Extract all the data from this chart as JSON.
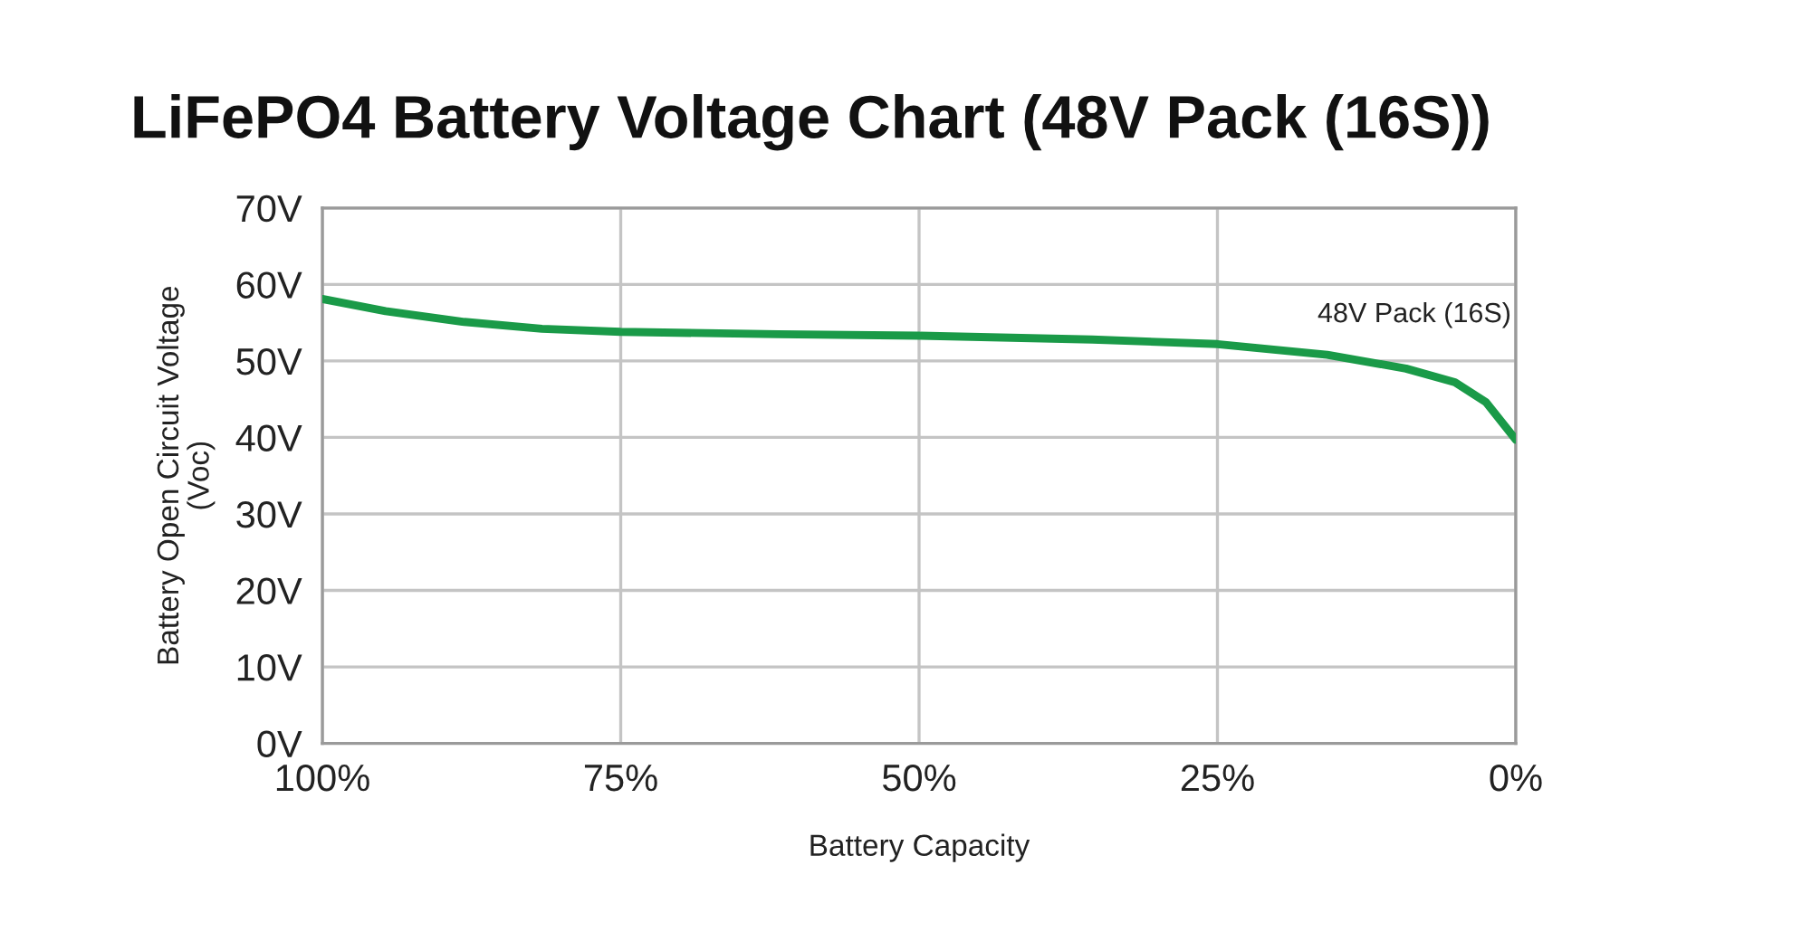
{
  "chart_data": {
    "type": "line",
    "title": "LiFePO4 Battery Voltage Chart (48V Pack (16S))",
    "xlabel": "Battery Capacity",
    "ylabel": "Battery Open Circuit Voltage\n(Voc)",
    "x": [
      100,
      94.7,
      88.1,
      81.6,
      75,
      61.8,
      50,
      35.5,
      25,
      15.8,
      9.2,
      5.1,
      2.5,
      0
    ],
    "series": [
      {
        "name": "48V Pack (16S)",
        "color": "#1a9a48",
        "values": [
          58.1,
          56.5,
          55.1,
          54.2,
          53.8,
          53.5,
          53.3,
          52.8,
          52.2,
          50.8,
          49.0,
          47.2,
          44.6,
          39.7
        ]
      }
    ],
    "xlim": [
      100,
      0
    ],
    "xticks": [
      {
        "value": 100,
        "label": "100%"
      },
      {
        "value": 75,
        "label": "75%"
      },
      {
        "value": 50,
        "label": "50%"
      },
      {
        "value": 25,
        "label": "25%"
      },
      {
        "value": 0,
        "label": "0%"
      }
    ],
    "ylim": [
      0,
      70
    ],
    "yticks": [
      {
        "value": 0,
        "label": "0V"
      },
      {
        "value": 10,
        "label": "10V"
      },
      {
        "value": 20,
        "label": "20V"
      },
      {
        "value": 30,
        "label": "30V"
      },
      {
        "value": 40,
        "label": "40V"
      },
      {
        "value": 50,
        "label": "50V"
      },
      {
        "value": 60,
        "label": "60V"
      },
      {
        "value": 70,
        "label": "70V"
      }
    ],
    "grid": true,
    "legend": false,
    "marker": "none",
    "line_style": "solid"
  }
}
